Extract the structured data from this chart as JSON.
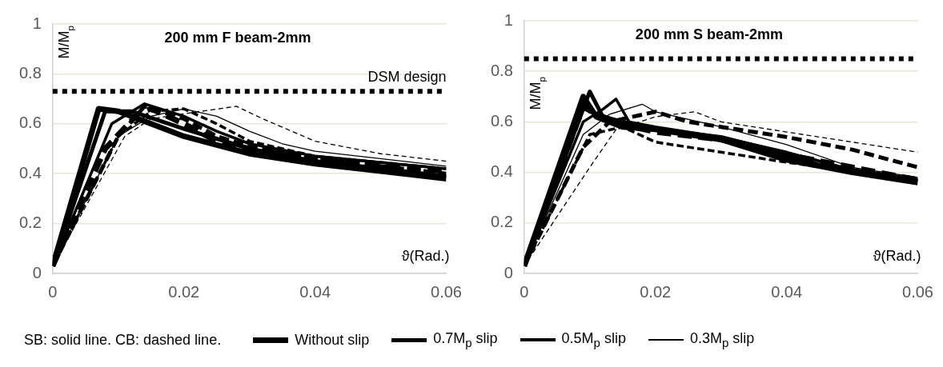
{
  "chart_data": [
    {
      "type": "line",
      "title": "200 mm F beam-2mm",
      "xlabel": "ϑ(Rad.)",
      "ylabel": "M/M$_{p}$",
      "xlim": [
        0,
        0.06
      ],
      "xticks": [
        0,
        0.02,
        0.04,
        0.06
      ],
      "ylim": [
        0,
        1
      ],
      "yticks": [
        0,
        0.2,
        0.4,
        0.6,
        0.8,
        1
      ],
      "grid": "y",
      "legend": "bottom",
      "marker": "none",
      "annotations": [
        "SB: solid line. CB: dashed line."
      ],
      "ref_lines": [
        {
          "axis": "y",
          "value": 0.73,
          "label": "DSM design",
          "color": "#000000",
          "line_style": "dotted"
        }
      ],
      "series": [
        {
          "name": "Without slip",
          "color": "#000000",
          "line_style": "solid",
          "x": [
            0,
            0.007,
            0.01,
            0.013,
            0.02,
            0.03,
            0.04,
            0.05,
            0.06
          ],
          "values": [
            0.03,
            0.66,
            0.65,
            0.62,
            0.55,
            0.48,
            0.44,
            0.41,
            0.38
          ]
        },
        {
          "name": "0.7M$_{p}$ slip",
          "color": "#000000",
          "line_style": "solid",
          "x": [
            0,
            0.008,
            0.012,
            0.02,
            0.03,
            0.04,
            0.06
          ],
          "values": [
            0.03,
            0.65,
            0.65,
            0.58,
            0.5,
            0.45,
            0.39
          ]
        },
        {
          "name": "0.5M$_{p}$ slip",
          "color": "#000000",
          "line_style": "solid",
          "x": [
            0,
            0.009,
            0.014,
            0.02,
            0.025,
            0.03,
            0.04,
            0.06
          ],
          "values": [
            0.03,
            0.6,
            0.68,
            0.63,
            0.57,
            0.52,
            0.47,
            0.42
          ]
        },
        {
          "name": "0.3M$_{p}$ slip",
          "color": "#000000",
          "line_style": "solid",
          "x": [
            0,
            0.01,
            0.015,
            0.02,
            0.025,
            0.03,
            0.035,
            0.04,
            0.06
          ],
          "values": [
            0.03,
            0.55,
            0.63,
            0.66,
            0.63,
            0.57,
            0.52,
            0.49,
            0.43
          ]
        },
        {
          "color": "#000000",
          "line_style": "dashed",
          "x": [
            0,
            0.008,
            0.013,
            0.015,
            0.02,
            0.025,
            0.03,
            0.04,
            0.06
          ],
          "values": [
            0.03,
            0.5,
            0.64,
            0.66,
            0.6,
            0.53,
            0.5,
            0.46,
            0.41
          ]
        },
        {
          "color": "#000000",
          "line_style": "dashed",
          "x": [
            0,
            0.01,
            0.014,
            0.02,
            0.025,
            0.03,
            0.04,
            0.06
          ],
          "values": [
            0.03,
            0.55,
            0.67,
            0.62,
            0.55,
            0.51,
            0.46,
            0.4
          ]
        },
        {
          "color": "#000000",
          "line_style": "dashed",
          "x": [
            0,
            0.01,
            0.015,
            0.02,
            0.025,
            0.03,
            0.04,
            0.06
          ],
          "values": [
            0.03,
            0.55,
            0.65,
            0.66,
            0.6,
            0.53,
            0.47,
            0.42
          ]
        },
        {
          "color": "#000000",
          "line_style": "dashed",
          "x": [
            0,
            0.011,
            0.015,
            0.02,
            0.028,
            0.032,
            0.04,
            0.05,
            0.06
          ],
          "values": [
            0.03,
            0.55,
            0.62,
            0.64,
            0.67,
            0.62,
            0.53,
            0.48,
            0.45
          ]
        }
      ]
    },
    {
      "type": "line",
      "title": "200 mm S beam-2mm",
      "xlabel": "ϑ(Rad.)",
      "ylabel": "M/M$_{p}$",
      "xlim": [
        0,
        0.06
      ],
      "xticks": [
        0,
        0.02,
        0.04,
        0.06
      ],
      "ylim": [
        0,
        1
      ],
      "yticks": [
        0,
        0.2,
        0.4,
        0.6,
        0.8,
        1
      ],
      "grid": "y",
      "marker": "none",
      "ref_lines": [
        {
          "axis": "y",
          "value": 0.85,
          "color": "#000000",
          "line_style": "dotted"
        }
      ],
      "series": [
        {
          "color": "#000000",
          "line_style": "solid",
          "x": [
            0,
            0.009,
            0.011,
            0.015,
            0.02,
            0.03,
            0.04,
            0.05,
            0.06
          ],
          "values": [
            0.03,
            0.7,
            0.62,
            0.58,
            0.57,
            0.53,
            0.45,
            0.4,
            0.36
          ]
        },
        {
          "color": "#000000",
          "line_style": "solid",
          "x": [
            0,
            0.01,
            0.012,
            0.02,
            0.03,
            0.036,
            0.045,
            0.06
          ],
          "values": [
            0.03,
            0.72,
            0.62,
            0.57,
            0.54,
            0.5,
            0.43,
            0.37
          ]
        },
        {
          "color": "#000000",
          "line_style": "solid",
          "x": [
            0,
            0.009,
            0.012,
            0.014,
            0.016,
            0.02,
            0.03,
            0.04,
            0.05,
            0.06
          ],
          "values": [
            0.03,
            0.6,
            0.65,
            0.69,
            0.6,
            0.58,
            0.54,
            0.48,
            0.41,
            0.37
          ]
        },
        {
          "color": "#000000",
          "line_style": "solid",
          "x": [
            0,
            0.009,
            0.013,
            0.018,
            0.02,
            0.03,
            0.04,
            0.05,
            0.06
          ],
          "values": [
            0.03,
            0.55,
            0.63,
            0.67,
            0.64,
            0.58,
            0.51,
            0.42,
            0.38
          ]
        },
        {
          "color": "#000000",
          "line_style": "dashed",
          "x": [
            0,
            0.009,
            0.011,
            0.015,
            0.02,
            0.03,
            0.04,
            0.05,
            0.06
          ],
          "values": [
            0.03,
            0.66,
            0.63,
            0.59,
            0.56,
            0.53,
            0.47,
            0.42,
            0.37
          ]
        },
        {
          "color": "#000000",
          "line_style": "dashed",
          "x": [
            0,
            0.009,
            0.013,
            0.02,
            0.025,
            0.03,
            0.04,
            0.05,
            0.06
          ],
          "values": [
            0.03,
            0.5,
            0.6,
            0.64,
            0.6,
            0.58,
            0.54,
            0.49,
            0.42
          ]
        },
        {
          "color": "#000000",
          "line_style": "dashed",
          "x": [
            0,
            0.01,
            0.015,
            0.02,
            0.03,
            0.04,
            0.06
          ],
          "values": [
            0.03,
            0.55,
            0.58,
            0.52,
            0.48,
            0.44,
            0.37
          ]
        },
        {
          "color": "#000000",
          "line_style": "dashed",
          "x": [
            0,
            0.01,
            0.014,
            0.02,
            0.026,
            0.03,
            0.04,
            0.05,
            0.06
          ],
          "values": [
            0.03,
            0.42,
            0.57,
            0.62,
            0.64,
            0.6,
            0.56,
            0.52,
            0.48
          ]
        }
      ]
    }
  ]
}
